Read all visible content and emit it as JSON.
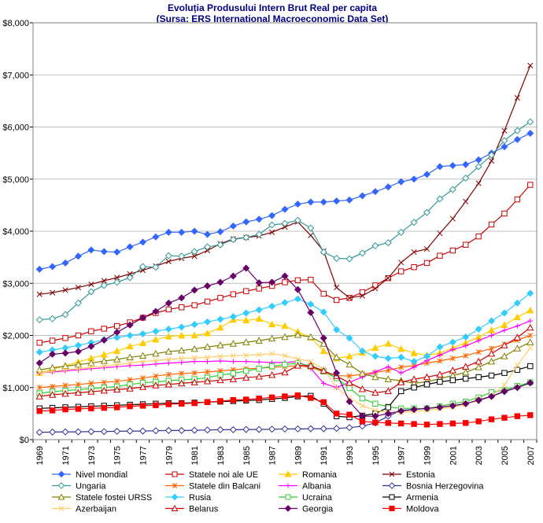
{
  "chart_data": {
    "type": "line",
    "title": "Evoluția Produsului Intern Brut Real per capita",
    "subtitle": "(Sursa: ERS International Macroeconomic Data Set)",
    "xlabel": "",
    "ylabel": "",
    "x": [
      1969,
      1970,
      1971,
      1972,
      1973,
      1974,
      1975,
      1976,
      1977,
      1978,
      1979,
      1980,
      1981,
      1982,
      1983,
      1984,
      1985,
      1986,
      1987,
      1988,
      1989,
      1990,
      1991,
      1992,
      1993,
      1994,
      1995,
      1996,
      1997,
      1998,
      1999,
      2000,
      2001,
      2002,
      2003,
      2004,
      2005,
      2006,
      2007
    ],
    "x_ticks": [
      1969,
      1971,
      1973,
      1975,
      1977,
      1979,
      1981,
      1983,
      1985,
      1987,
      1989,
      1991,
      1993,
      1995,
      1997,
      1999,
      2001,
      2003,
      2005,
      2007
    ],
    "ylim": [
      0,
      8000
    ],
    "y_ticks": [
      "$0",
      "$1,000",
      "$2,000",
      "$3,000",
      "$4,000",
      "$5,000",
      "$6,000",
      "$7,000",
      "$8,000"
    ],
    "grid": true,
    "legend_position": "bottom",
    "series": [
      {
        "name": "Nivel mondial",
        "color": "#3366ff",
        "marker": "diamond",
        "filled": true,
        "dash": "",
        "values": [
          3270,
          3320,
          3390,
          3520,
          3640,
          3610,
          3600,
          3700,
          3790,
          3890,
          3980,
          3980,
          4000,
          3940,
          3990,
          4100,
          4180,
          4230,
          4300,
          4420,
          4520,
          4560,
          4560,
          4580,
          4600,
          4680,
          4760,
          4850,
          4950,
          5000,
          5090,
          5240,
          5260,
          5280,
          5370,
          5500,
          5620,
          5760,
          5880
        ]
      },
      {
        "name": "Statele noi ale UE",
        "color": "#cc0000",
        "marker": "square",
        "filled": false,
        "dash": "",
        "values": [
          1860,
          1900,
          1950,
          2000,
          2080,
          2130,
          2180,
          2250,
          2340,
          2430,
          2500,
          2540,
          2580,
          2650,
          2720,
          2790,
          2850,
          2900,
          2950,
          3020,
          3060,
          3070,
          2800,
          2680,
          2720,
          2830,
          2960,
          3100,
          3230,
          3310,
          3390,
          3530,
          3630,
          3740,
          3900,
          4130,
          4340,
          4610,
          4890
        ]
      },
      {
        "name": "Romania",
        "color": "#ffcc00",
        "marker": "triangle",
        "filled": true,
        "dash": "",
        "values": [
          1280,
          1350,
          1420,
          1490,
          1560,
          1630,
          1700,
          1790,
          1850,
          1920,
          1980,
          2000,
          2000,
          2040,
          2150,
          2300,
          2290,
          2320,
          2210,
          2180,
          2070,
          1960,
          1700,
          1560,
          1600,
          1670,
          1760,
          1840,
          1740,
          1660,
          1620,
          1660,
          1760,
          1860,
          1970,
          2100,
          2200,
          2350,
          2480
        ]
      },
      {
        "name": "Estonia",
        "color": "#800000",
        "marker": "x",
        "filled": false,
        "dash": "",
        "values": [
          2790,
          2820,
          2870,
          2920,
          2980,
          3050,
          3110,
          3180,
          3250,
          3330,
          3420,
          3480,
          3520,
          3630,
          3760,
          3850,
          3880,
          3910,
          3980,
          4080,
          4180,
          3920,
          3620,
          2920,
          2720,
          2760,
          2900,
          3100,
          3400,
          3600,
          3660,
          3960,
          4240,
          4570,
          4920,
          5350,
          5930,
          6560,
          7180
        ]
      },
      {
        "name": "Ungaria",
        "color": "#339999",
        "marker": "diamond",
        "filled": false,
        "dash": "",
        "values": [
          2300,
          2320,
          2400,
          2620,
          2840,
          2960,
          3020,
          3110,
          3320,
          3310,
          3530,
          3520,
          3610,
          3700,
          3740,
          3840,
          3880,
          3940,
          4120,
          4150,
          4210,
          4060,
          3600,
          3480,
          3470,
          3580,
          3720,
          3780,
          3980,
          4170,
          4360,
          4620,
          4800,
          5020,
          5240,
          5460,
          5740,
          5930,
          6100
        ]
      },
      {
        "name": "Statele din Balcani",
        "color": "#ff6600",
        "marker": "asterisk",
        "filled": false,
        "dash": "",
        "values": [
          1000,
          1020,
          1040,
          1060,
          1080,
          1100,
          1120,
          1150,
          1180,
          1220,
          1250,
          1270,
          1280,
          1300,
          1320,
          1340,
          1360,
          1370,
          1390,
          1400,
          1420,
          1390,
          1300,
          1230,
          1220,
          1260,
          1290,
          1330,
          1390,
          1420,
          1470,
          1510,
          1560,
          1610,
          1680,
          1750,
          1830,
          1910,
          2000
        ]
      },
      {
        "name": "Albania",
        "color": "#ff00ff",
        "marker": "plus",
        "filled": false,
        "dash": "",
        "values": [
          1280,
          1300,
          1320,
          1340,
          1360,
          1380,
          1400,
          1420,
          1430,
          1450,
          1470,
          1480,
          1500,
          1500,
          1510,
          1500,
          1500,
          1490,
          1480,
          1480,
          1500,
          1370,
          1080,
          1000,
          1100,
          1200,
          1300,
          1400,
          1280,
          1390,
          1520,
          1620,
          1730,
          1800,
          1900,
          2000,
          2100,
          2180,
          2280
        ]
      },
      {
        "name": "Bosnia Herzegovina",
        "color": "#333399",
        "marker": "diamond",
        "filled": false,
        "dash": "",
        "values": [
          140,
          145,
          150,
          150,
          155,
          155,
          160,
          165,
          165,
          170,
          175,
          175,
          180,
          185,
          190,
          190,
          195,
          195,
          200,
          205,
          205,
          210,
          210,
          215,
          230,
          260,
          320,
          450,
          560,
          580,
          600,
          620,
          650,
          690,
          750,
          830,
          920,
          1000,
          1090
        ]
      },
      {
        "name": "Statele fostei URSS",
        "color": "#808000",
        "marker": "triangle",
        "filled": false,
        "dash": "",
        "values": [
          1340,
          1380,
          1410,
          1440,
          1470,
          1510,
          1540,
          1580,
          1610,
          1650,
          1690,
          1710,
          1740,
          1780,
          1810,
          1840,
          1870,
          1900,
          1940,
          1970,
          2010,
          1970,
          1840,
          1580,
          1440,
          1270,
          1200,
          1160,
          1130,
          1080,
          1110,
          1170,
          1230,
          1290,
          1390,
          1500,
          1600,
          1750,
          1870
        ]
      },
      {
        "name": "Rusia",
        "color": "#33ccff",
        "marker": "diamond",
        "filled": true,
        "dash": "",
        "values": [
          1680,
          1720,
          1760,
          1810,
          1860,
          1920,
          1960,
          2000,
          2030,
          2080,
          2120,
          2160,
          2210,
          2260,
          2310,
          2360,
          2430,
          2490,
          2560,
          2630,
          2700,
          2600,
          2450,
          2110,
          1950,
          1700,
          1600,
          1560,
          1580,
          1500,
          1600,
          1780,
          1870,
          1970,
          2120,
          2280,
          2430,
          2620,
          2810
        ]
      },
      {
        "name": "Ucraina",
        "color": "#33cc33",
        "marker": "square",
        "filled": false,
        "dash": "",
        "values": [
          890,
          920,
          940,
          960,
          980,
          1000,
          1020,
          1060,
          1090,
          1110,
          1130,
          1150,
          1160,
          1190,
          1240,
          1270,
          1320,
          1360,
          1410,
          1440,
          1470,
          1410,
          1310,
          1180,
          990,
          790,
          690,
          630,
          600,
          600,
          600,
          640,
          690,
          730,
          810,
          910,
          950,
          1030,
          1100
        ]
      },
      {
        "name": "Armenia",
        "color": "#000000",
        "marker": "square",
        "filled": false,
        "dash": "",
        "values": [
          600,
          610,
          620,
          630,
          640,
          650,
          660,
          670,
          680,
          690,
          700,
          700,
          710,
          720,
          730,
          740,
          750,
          760,
          780,
          800,
          830,
          840,
          690,
          450,
          430,
          460,
          500,
          620,
          930,
          1000,
          1060,
          1110,
          1140,
          1170,
          1200,
          1230,
          1280,
          1340,
          1410
        ]
      },
      {
        "name": "Azerbaijan",
        "color": "#ffcc66",
        "marker": "x",
        "filled": false,
        "dash": "",
        "values": [
          1280,
          1310,
          1340,
          1360,
          1390,
          1410,
          1440,
          1470,
          1500,
          1520,
          1540,
          1560,
          1570,
          1580,
          1600,
          1610,
          1620,
          1630,
          1650,
          1610,
          1550,
          1500,
          1350,
          1000,
          800,
          650,
          560,
          520,
          520,
          540,
          560,
          590,
          620,
          680,
          760,
          830,
          1050,
          1430,
          1760
        ]
      },
      {
        "name": "Belarus",
        "color": "#cc0000",
        "marker": "triangle",
        "filled": false,
        "dash": "",
        "values": [
          830,
          860,
          880,
          900,
          920,
          940,
          960,
          980,
          1010,
          1040,
          1060,
          1080,
          1100,
          1120,
          1140,
          1160,
          1190,
          1210,
          1240,
          1290,
          1420,
          1420,
          1320,
          1220,
          1090,
          970,
          900,
          930,
          1100,
          1160,
          1200,
          1250,
          1330,
          1400,
          1500,
          1650,
          1810,
          1960,
          2150
        ]
      },
      {
        "name": "Georgia",
        "color": "#660066",
        "marker": "diamond",
        "filled": true,
        "dash": "",
        "values": [
          1470,
          1640,
          1660,
          1690,
          1790,
          1910,
          2060,
          2200,
          2340,
          2460,
          2620,
          2720,
          2870,
          2950,
          3020,
          3140,
          3290,
          3010,
          3020,
          3140,
          2880,
          2440,
          1950,
          1280,
          730,
          450,
          450,
          500,
          550,
          580,
          600,
          620,
          650,
          690,
          760,
          830,
          930,
          1000,
          1090
        ]
      },
      {
        "name": "Moldova",
        "color": "#ff0000",
        "marker": "square",
        "filled": true,
        "dash": "",
        "values": [
          550,
          560,
          580,
          590,
          600,
          610,
          620,
          640,
          650,
          660,
          680,
          690,
          700,
          720,
          740,
          760,
          770,
          790,
          810,
          830,
          850,
          800,
          720,
          500,
          480,
          350,
          330,
          320,
          310,
          300,
          290,
          300,
          310,
          320,
          350,
          390,
          420,
          450,
          470
        ]
      }
    ]
  }
}
